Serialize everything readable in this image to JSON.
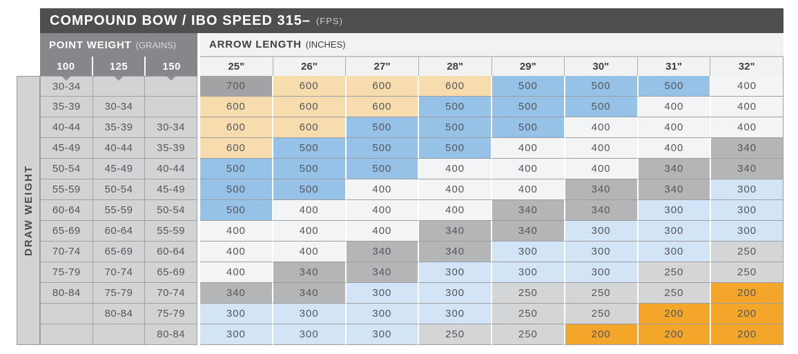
{
  "title": {
    "main": "COMPOUND BOW / IBO SPEED 315–",
    "unit": "(FPS)"
  },
  "point_weight": {
    "label": "POINT WEIGHT",
    "unit": "(GRAINS)"
  },
  "arrow_length": {
    "label": "ARROW LENGTH",
    "unit": "(INCHES)"
  },
  "side_label": "DRAW WEIGHT",
  "chart_data": {
    "type": "table",
    "title": "COMPOUND BOW / IBO SPEED 315- (FPS)",
    "row_axis_label": "DRAW WEIGHT",
    "point_weight_columns": [
      "100",
      "125",
      "150"
    ],
    "arrow_length_columns": [
      "25\"",
      "26\"",
      "27\"",
      "28\"",
      "29\"",
      "30\"",
      "31\"",
      "32\""
    ],
    "rows": [
      {
        "draw_weight": [
          "30-34",
          "",
          ""
        ],
        "spines": [
          700,
          600,
          600,
          600,
          500,
          500,
          500,
          400
        ]
      },
      {
        "draw_weight": [
          "35-39",
          "30-34",
          ""
        ],
        "spines": [
          600,
          600,
          600,
          500,
          500,
          500,
          400,
          400
        ]
      },
      {
        "draw_weight": [
          "40-44",
          "35-39",
          "30-34"
        ],
        "spines": [
          600,
          600,
          500,
          500,
          500,
          400,
          400,
          400
        ]
      },
      {
        "draw_weight": [
          "45-49",
          "40-44",
          "35-39"
        ],
        "spines": [
          600,
          500,
          500,
          500,
          400,
          400,
          400,
          340
        ]
      },
      {
        "draw_weight": [
          "50-54",
          "45-49",
          "40-44"
        ],
        "spines": [
          500,
          500,
          500,
          400,
          400,
          400,
          340,
          340
        ]
      },
      {
        "draw_weight": [
          "55-59",
          "50-54",
          "45-49"
        ],
        "spines": [
          500,
          500,
          400,
          400,
          400,
          340,
          340,
          300
        ]
      },
      {
        "draw_weight": [
          "60-64",
          "55-59",
          "50-54"
        ],
        "spines": [
          500,
          400,
          400,
          400,
          340,
          340,
          300,
          300
        ]
      },
      {
        "draw_weight": [
          "65-69",
          "60-64",
          "55-59"
        ],
        "spines": [
          400,
          400,
          400,
          340,
          340,
          300,
          300,
          300
        ]
      },
      {
        "draw_weight": [
          "70-74",
          "65-69",
          "60-64"
        ],
        "spines": [
          400,
          400,
          340,
          340,
          300,
          300,
          300,
          250
        ]
      },
      {
        "draw_weight": [
          "75-79",
          "70-74",
          "65-69"
        ],
        "spines": [
          400,
          340,
          340,
          300,
          300,
          300,
          250,
          250
        ]
      },
      {
        "draw_weight": [
          "80-84",
          "75-79",
          "70-74"
        ],
        "spines": [
          340,
          340,
          300,
          300,
          250,
          250,
          250,
          200
        ]
      },
      {
        "draw_weight": [
          "",
          "80-84",
          "75-79"
        ],
        "spines": [
          300,
          300,
          300,
          300,
          250,
          250,
          200,
          200
        ]
      },
      {
        "draw_weight": [
          "",
          "",
          "80-84"
        ],
        "spines": [
          300,
          300,
          300,
          250,
          250,
          200,
          200,
          200
        ]
      }
    ],
    "spine_colors": {
      "700": "#a1a3a5",
      "600": "#f7ddae",
      "500": "#97c2e8",
      "400": "#f3f4f5",
      "340": "#b3b5b7",
      "300": "#d2e4f5",
      "250": "#d3d5d6",
      "200": "#f3a62a"
    }
  }
}
